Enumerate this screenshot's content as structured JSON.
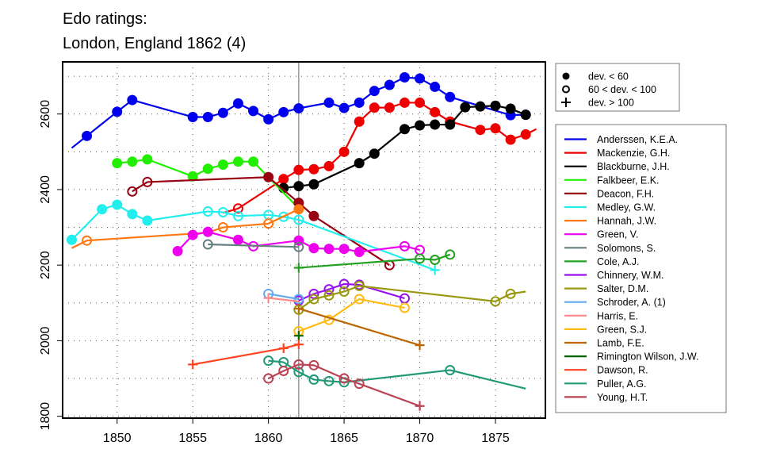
{
  "chart_data": {
    "type": "line",
    "title": [
      "Edo ratings:",
      "London, England 1862 (4)"
    ],
    "xlabel": "",
    "ylabel": "",
    "xlim": [
      1846.4,
      1878.3
    ],
    "ylim": [
      1795,
      2738
    ],
    "x_ticks": [
      1850,
      1855,
      1860,
      1865,
      1870,
      1875
    ],
    "y_ticks": [
      1800,
      2000,
      2200,
      2400,
      2600
    ],
    "grid": "dotted",
    "reference_year": 1862,
    "legend_position": "right",
    "marker_legend": [
      {
        "symbol": "filled-circle",
        "label": "dev. < 60"
      },
      {
        "symbol": "open-circle",
        "label": "60 < dev. < 100"
      },
      {
        "symbol": "plus",
        "label": "dev. > 100"
      }
    ],
    "series": [
      {
        "name": "Anderssen, K.E.A.",
        "color": "#0000ee",
        "points": [
          [
            1847,
            2510,
            "none"
          ],
          [
            1848,
            2542,
            "f"
          ],
          [
            1850,
            2606,
            "f"
          ],
          [
            1851,
            2637,
            "f"
          ],
          [
            1855,
            2592,
            "f"
          ],
          [
            1856,
            2592,
            "f"
          ],
          [
            1857,
            2603,
            "f"
          ],
          [
            1858,
            2628,
            "f"
          ],
          [
            1859,
            2608,
            "f"
          ],
          [
            1860,
            2586,
            "f"
          ],
          [
            1861,
            2605,
            "f"
          ],
          [
            1862,
            2615,
            "f"
          ],
          [
            1864,
            2630,
            "f"
          ],
          [
            1865,
            2616,
            "f"
          ],
          [
            1866,
            2630,
            "f"
          ],
          [
            1867,
            2661,
            "f"
          ],
          [
            1868,
            2677,
            "f"
          ],
          [
            1869,
            2697,
            "f"
          ],
          [
            1870,
            2694,
            "f"
          ],
          [
            1871,
            2672,
            "f"
          ],
          [
            1872,
            2645,
            "f"
          ],
          [
            1876,
            2597,
            "f"
          ],
          [
            1877,
            2598,
            "f"
          ]
        ]
      },
      {
        "name": "Mackenzie, G.H.",
        "color": "#ee0000",
        "points": [
          [
            1857,
            2338,
            "none"
          ],
          [
            1858,
            2350,
            "o"
          ],
          [
            1861,
            2428,
            "f"
          ],
          [
            1862,
            2452,
            "f"
          ],
          [
            1863,
            2454,
            "f"
          ],
          [
            1864,
            2462,
            "f"
          ],
          [
            1865,
            2500,
            "f"
          ],
          [
            1866,
            2580,
            "f"
          ],
          [
            1867,
            2617,
            "f"
          ],
          [
            1868,
            2617,
            "f"
          ],
          [
            1869,
            2630,
            "f"
          ],
          [
            1870,
            2630,
            "f"
          ],
          [
            1871,
            2605,
            "f"
          ],
          [
            1872,
            2580,
            "f"
          ],
          [
            1874,
            2558,
            "f"
          ],
          [
            1875,
            2562,
            "f"
          ],
          [
            1876,
            2532,
            "f"
          ],
          [
            1877,
            2546,
            "f"
          ],
          [
            1877.7,
            2560,
            "none"
          ]
        ]
      },
      {
        "name": "Blackburne, J.H.",
        "color": "#000000",
        "points": [
          [
            1861,
            2404,
            "f"
          ],
          [
            1862,
            2409,
            "f"
          ],
          [
            1863,
            2414,
            "f"
          ],
          [
            1866,
            2470,
            "f"
          ],
          [
            1867,
            2495,
            "f"
          ],
          [
            1869,
            2560,
            "f"
          ],
          [
            1870,
            2570,
            "f"
          ],
          [
            1871,
            2572,
            "f"
          ],
          [
            1872,
            2572,
            "f"
          ],
          [
            1873,
            2618,
            "f"
          ],
          [
            1874,
            2620,
            "f"
          ],
          [
            1875,
            2622,
            "f"
          ],
          [
            1876,
            2614,
            "f"
          ],
          [
            1877,
            2598,
            "f"
          ]
        ]
      },
      {
        "name": "Falkbeer, E.K.",
        "color": "#22ee00",
        "points": [
          [
            1850,
            2470,
            "f"
          ],
          [
            1851,
            2474,
            "f"
          ],
          [
            1852,
            2480,
            "f"
          ],
          [
            1855,
            2435,
            "f"
          ],
          [
            1856,
            2455,
            "f"
          ],
          [
            1857,
            2466,
            "f"
          ],
          [
            1858,
            2474,
            "f"
          ],
          [
            1859,
            2474,
            "f"
          ],
          [
            1862,
            2350,
            "none"
          ]
        ]
      },
      {
        "name": "Deacon, F.H.",
        "color": "#990011",
        "points": [
          [
            1851,
            2395,
            "o"
          ],
          [
            1852,
            2420,
            "o"
          ],
          [
            1860,
            2433,
            "f"
          ],
          [
            1862,
            2365,
            "f"
          ],
          [
            1863,
            2330,
            "f"
          ],
          [
            1868,
            2200,
            "o"
          ]
        ]
      },
      {
        "name": "Medley, G.W.",
        "color": "#22eeee",
        "points": [
          [
            1847,
            2267,
            "f"
          ],
          [
            1849,
            2348,
            "f"
          ],
          [
            1850,
            2360,
            "f"
          ],
          [
            1851,
            2335,
            "f"
          ],
          [
            1852,
            2318,
            "f"
          ],
          [
            1856,
            2342,
            "o"
          ],
          [
            1857,
            2340,
            "o"
          ],
          [
            1858,
            2330,
            "o"
          ],
          [
            1860,
            2333,
            "o"
          ],
          [
            1861,
            2328,
            "o"
          ],
          [
            1862,
            2320,
            "o"
          ],
          [
            1871,
            2187,
            "p"
          ]
        ]
      },
      {
        "name": "Hannah, J.W.",
        "color": "#ff7711",
        "points": [
          [
            1847,
            2245,
            "none"
          ],
          [
            1848,
            2265,
            "o"
          ],
          [
            1856,
            2286,
            "none"
          ],
          [
            1857,
            2300,
            "o"
          ],
          [
            1860,
            2310,
            "o"
          ],
          [
            1862,
            2348,
            "f"
          ]
        ]
      },
      {
        "name": "Green, V.",
        "color": "#ee00ee",
        "points": [
          [
            1854,
            2237,
            "f"
          ],
          [
            1855,
            2280,
            "f"
          ],
          [
            1856,
            2288,
            "f"
          ],
          [
            1858,
            2267,
            "f"
          ],
          [
            1859,
            2250,
            "o"
          ],
          [
            1862,
            2265,
            "f"
          ],
          [
            1863,
            2245,
            "f"
          ],
          [
            1864,
            2243,
            "f"
          ],
          [
            1865,
            2243,
            "f"
          ],
          [
            1866,
            2235,
            "f"
          ],
          [
            1869,
            2250,
            "o"
          ],
          [
            1870,
            2240,
            "o"
          ]
        ]
      },
      {
        "name": "Solomons, S.",
        "color": "#667f80",
        "points": [
          [
            1856,
            2255,
            "o"
          ],
          [
            1862,
            2248,
            "o"
          ]
        ]
      },
      {
        "name": "Cole, A.J.",
        "color": "#22a022",
        "points": [
          [
            1862,
            2193,
            "p"
          ],
          [
            1870,
            2217,
            "o"
          ],
          [
            1871,
            2214,
            "o"
          ],
          [
            1872,
            2228,
            "o"
          ]
        ]
      },
      {
        "name": "Chinnery, W.M.",
        "color": "#9911ee",
        "points": [
          [
            1862,
            2106,
            "o"
          ],
          [
            1863,
            2124,
            "o"
          ],
          [
            1864,
            2136,
            "o"
          ],
          [
            1865,
            2150,
            "o"
          ],
          [
            1866,
            2148,
            "o"
          ],
          [
            1869,
            2112,
            "o"
          ]
        ]
      },
      {
        "name": "Salter, D.M.",
        "color": "#999911",
        "points": [
          [
            1862,
            2082,
            "o"
          ],
          [
            1863,
            2110,
            "o"
          ],
          [
            1864,
            2120,
            "o"
          ],
          [
            1865,
            2130,
            "o"
          ],
          [
            1866,
            2145,
            "o"
          ],
          [
            1875,
            2104,
            "o"
          ],
          [
            1876,
            2124,
            "o"
          ],
          [
            1877,
            2130,
            "none"
          ]
        ]
      },
      {
        "name": "Schroder, A. (1)",
        "color": "#66aaee",
        "points": [
          [
            1860,
            2124,
            "o"
          ],
          [
            1862,
            2110,
            "o"
          ]
        ]
      },
      {
        "name": "Harris, E.",
        "color": "#ff8888",
        "points": [
          [
            1860,
            2113,
            "p"
          ],
          [
            1862,
            2104,
            "none"
          ]
        ]
      },
      {
        "name": "Green, S.J.",
        "color": "#ffbb11",
        "points": [
          [
            1862,
            2025,
            "o"
          ],
          [
            1864,
            2055,
            "o"
          ],
          [
            1866,
            2110,
            "o"
          ],
          [
            1869,
            2087,
            "o"
          ]
        ]
      },
      {
        "name": "Lamb, F.E.",
        "color": "#bb6600",
        "points": [
          [
            1862,
            2085,
            "p"
          ],
          [
            1870,
            1988,
            "p"
          ]
        ]
      },
      {
        "name": "Rimington Wilson, J.W.",
        "color": "#006600",
        "points": [
          [
            1862,
            2013,
            "p"
          ]
        ]
      },
      {
        "name": "Dawson, R.",
        "color": "#ff4422",
        "points": [
          [
            1855,
            1937,
            "p"
          ],
          [
            1861,
            1980,
            "p"
          ],
          [
            1862,
            1990,
            "p"
          ]
        ]
      },
      {
        "name": "Puller, A.G.",
        "color": "#229977",
        "points": [
          [
            1860,
            1947,
            "o"
          ],
          [
            1861,
            1943,
            "o"
          ],
          [
            1862,
            1917,
            "o"
          ],
          [
            1863,
            1897,
            "o"
          ],
          [
            1864,
            1893,
            "o"
          ],
          [
            1865,
            1890,
            "o"
          ],
          [
            1872,
            1922,
            "o"
          ],
          [
            1877,
            1873,
            "none"
          ]
        ]
      },
      {
        "name": "Young, H.T.",
        "color": "#bb4455",
        "points": [
          [
            1860,
            1900,
            "o"
          ],
          [
            1861,
            1920,
            "o"
          ],
          [
            1862,
            1937,
            "o"
          ],
          [
            1863,
            1935,
            "o"
          ],
          [
            1865,
            1900,
            "o"
          ],
          [
            1866,
            1886,
            "o"
          ],
          [
            1870,
            1827,
            "p"
          ]
        ]
      }
    ]
  }
}
